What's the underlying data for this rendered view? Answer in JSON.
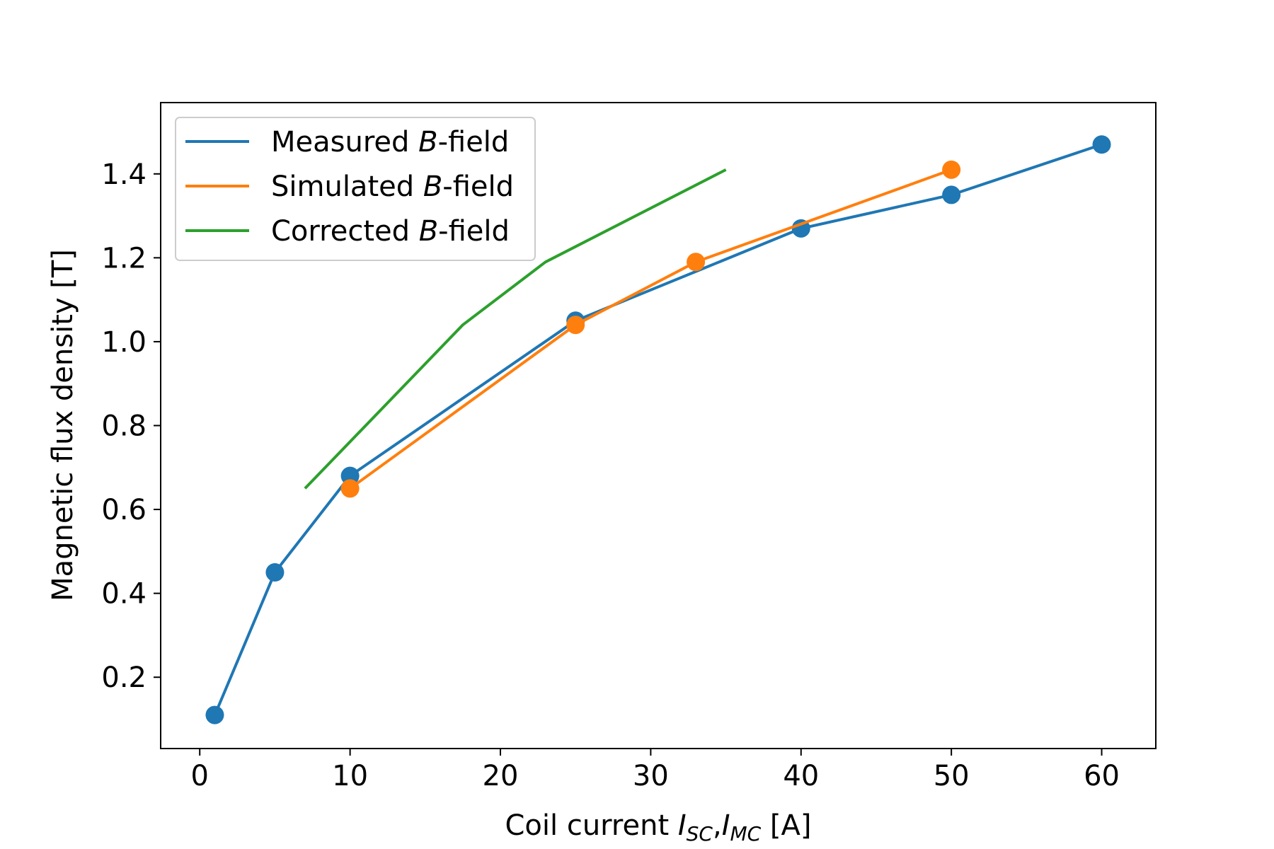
{
  "chart_data": {
    "type": "line",
    "title": "",
    "xlabel": {
      "prefix": "Coil current ",
      "var1": "I",
      "sub1": "SC",
      "sep": ",",
      "var2": "I",
      "sub2": "MC",
      "suffix": " [A]"
    },
    "ylabel": "Magnetic flux density [T]",
    "xlim": [
      -2.6,
      63.6
    ],
    "ylim": [
      0.03,
      1.57
    ],
    "xticks": [
      0,
      10,
      20,
      30,
      40,
      50,
      60
    ],
    "yticks": [
      0.2,
      0.4,
      0.6,
      0.8,
      1.0,
      1.2,
      1.4
    ],
    "ytick_labels": [
      "0.2",
      "0.4",
      "0.6",
      "0.8",
      "1.0",
      "1.2",
      "1.4"
    ],
    "grid": false,
    "legend_position": "upper-left",
    "series": [
      {
        "name": {
          "prefix": "Measured ",
          "italic": "B",
          "suffix": "-field"
        },
        "color": "#1f77b4",
        "markers": true,
        "x": [
          1,
          5,
          10,
          25,
          40,
          50,
          60
        ],
        "y": [
          0.11,
          0.45,
          0.68,
          1.05,
          1.27,
          1.35,
          1.47
        ]
      },
      {
        "name": {
          "prefix": "Simulated ",
          "italic": "B",
          "suffix": "-field"
        },
        "color": "#ff7f0e",
        "markers": true,
        "x": [
          10,
          25,
          33,
          50
        ],
        "y": [
          0.65,
          1.04,
          1.19,
          1.41
        ]
      },
      {
        "name": {
          "prefix": "Corrected ",
          "italic": "B",
          "suffix": "-field"
        },
        "color": "#2ca02c",
        "markers": false,
        "x": [
          7,
          17.5,
          23,
          35
        ],
        "y": [
          0.65,
          1.04,
          1.19,
          1.41
        ]
      }
    ]
  }
}
